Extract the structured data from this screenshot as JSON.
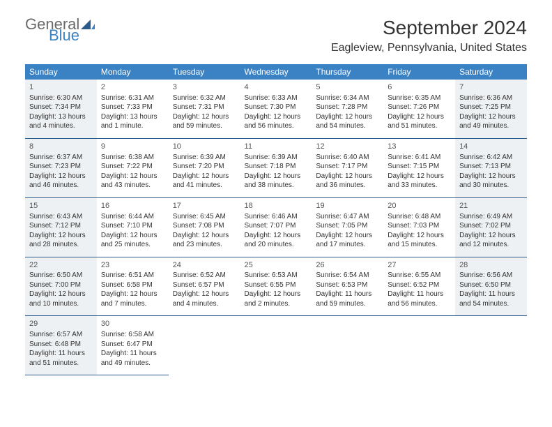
{
  "logo": {
    "line1": "General",
    "line2": "Blue",
    "icon_color": "#2c5a8a"
  },
  "header": {
    "month_title": "September 2024",
    "location": "Eagleview, Pennsylvania, United States"
  },
  "colors": {
    "header_bg": "#3b82c4",
    "header_text": "#ffffff",
    "row_border": "#2c5a8a",
    "shaded_bg": "#eef1f3",
    "text": "#333333"
  },
  "weekdays": [
    "Sunday",
    "Monday",
    "Tuesday",
    "Wednesday",
    "Thursday",
    "Friday",
    "Saturday"
  ],
  "weeks": [
    [
      {
        "n": "1",
        "sr": "Sunrise: 6:30 AM",
        "ss": "Sunset: 7:34 PM",
        "dl1": "Daylight: 13 hours",
        "dl2": "and 4 minutes.",
        "shaded": true
      },
      {
        "n": "2",
        "sr": "Sunrise: 6:31 AM",
        "ss": "Sunset: 7:33 PM",
        "dl1": "Daylight: 13 hours",
        "dl2": "and 1 minute."
      },
      {
        "n": "3",
        "sr": "Sunrise: 6:32 AM",
        "ss": "Sunset: 7:31 PM",
        "dl1": "Daylight: 12 hours",
        "dl2": "and 59 minutes."
      },
      {
        "n": "4",
        "sr": "Sunrise: 6:33 AM",
        "ss": "Sunset: 7:30 PM",
        "dl1": "Daylight: 12 hours",
        "dl2": "and 56 minutes."
      },
      {
        "n": "5",
        "sr": "Sunrise: 6:34 AM",
        "ss": "Sunset: 7:28 PM",
        "dl1": "Daylight: 12 hours",
        "dl2": "and 54 minutes."
      },
      {
        "n": "6",
        "sr": "Sunrise: 6:35 AM",
        "ss": "Sunset: 7:26 PM",
        "dl1": "Daylight: 12 hours",
        "dl2": "and 51 minutes."
      },
      {
        "n": "7",
        "sr": "Sunrise: 6:36 AM",
        "ss": "Sunset: 7:25 PM",
        "dl1": "Daylight: 12 hours",
        "dl2": "and 49 minutes.",
        "shaded": true
      }
    ],
    [
      {
        "n": "8",
        "sr": "Sunrise: 6:37 AM",
        "ss": "Sunset: 7:23 PM",
        "dl1": "Daylight: 12 hours",
        "dl2": "and 46 minutes.",
        "shaded": true
      },
      {
        "n": "9",
        "sr": "Sunrise: 6:38 AM",
        "ss": "Sunset: 7:22 PM",
        "dl1": "Daylight: 12 hours",
        "dl2": "and 43 minutes."
      },
      {
        "n": "10",
        "sr": "Sunrise: 6:39 AM",
        "ss": "Sunset: 7:20 PM",
        "dl1": "Daylight: 12 hours",
        "dl2": "and 41 minutes."
      },
      {
        "n": "11",
        "sr": "Sunrise: 6:39 AM",
        "ss": "Sunset: 7:18 PM",
        "dl1": "Daylight: 12 hours",
        "dl2": "and 38 minutes."
      },
      {
        "n": "12",
        "sr": "Sunrise: 6:40 AM",
        "ss": "Sunset: 7:17 PM",
        "dl1": "Daylight: 12 hours",
        "dl2": "and 36 minutes."
      },
      {
        "n": "13",
        "sr": "Sunrise: 6:41 AM",
        "ss": "Sunset: 7:15 PM",
        "dl1": "Daylight: 12 hours",
        "dl2": "and 33 minutes."
      },
      {
        "n": "14",
        "sr": "Sunrise: 6:42 AM",
        "ss": "Sunset: 7:13 PM",
        "dl1": "Daylight: 12 hours",
        "dl2": "and 30 minutes.",
        "shaded": true
      }
    ],
    [
      {
        "n": "15",
        "sr": "Sunrise: 6:43 AM",
        "ss": "Sunset: 7:12 PM",
        "dl1": "Daylight: 12 hours",
        "dl2": "and 28 minutes.",
        "shaded": true
      },
      {
        "n": "16",
        "sr": "Sunrise: 6:44 AM",
        "ss": "Sunset: 7:10 PM",
        "dl1": "Daylight: 12 hours",
        "dl2": "and 25 minutes."
      },
      {
        "n": "17",
        "sr": "Sunrise: 6:45 AM",
        "ss": "Sunset: 7:08 PM",
        "dl1": "Daylight: 12 hours",
        "dl2": "and 23 minutes."
      },
      {
        "n": "18",
        "sr": "Sunrise: 6:46 AM",
        "ss": "Sunset: 7:07 PM",
        "dl1": "Daylight: 12 hours",
        "dl2": "and 20 minutes."
      },
      {
        "n": "19",
        "sr": "Sunrise: 6:47 AM",
        "ss": "Sunset: 7:05 PM",
        "dl1": "Daylight: 12 hours",
        "dl2": "and 17 minutes."
      },
      {
        "n": "20",
        "sr": "Sunrise: 6:48 AM",
        "ss": "Sunset: 7:03 PM",
        "dl1": "Daylight: 12 hours",
        "dl2": "and 15 minutes."
      },
      {
        "n": "21",
        "sr": "Sunrise: 6:49 AM",
        "ss": "Sunset: 7:02 PM",
        "dl1": "Daylight: 12 hours",
        "dl2": "and 12 minutes.",
        "shaded": true
      }
    ],
    [
      {
        "n": "22",
        "sr": "Sunrise: 6:50 AM",
        "ss": "Sunset: 7:00 PM",
        "dl1": "Daylight: 12 hours",
        "dl2": "and 10 minutes.",
        "shaded": true
      },
      {
        "n": "23",
        "sr": "Sunrise: 6:51 AM",
        "ss": "Sunset: 6:58 PM",
        "dl1": "Daylight: 12 hours",
        "dl2": "and 7 minutes."
      },
      {
        "n": "24",
        "sr": "Sunrise: 6:52 AM",
        "ss": "Sunset: 6:57 PM",
        "dl1": "Daylight: 12 hours",
        "dl2": "and 4 minutes."
      },
      {
        "n": "25",
        "sr": "Sunrise: 6:53 AM",
        "ss": "Sunset: 6:55 PM",
        "dl1": "Daylight: 12 hours",
        "dl2": "and 2 minutes."
      },
      {
        "n": "26",
        "sr": "Sunrise: 6:54 AM",
        "ss": "Sunset: 6:53 PM",
        "dl1": "Daylight: 11 hours",
        "dl2": "and 59 minutes."
      },
      {
        "n": "27",
        "sr": "Sunrise: 6:55 AM",
        "ss": "Sunset: 6:52 PM",
        "dl1": "Daylight: 11 hours",
        "dl2": "and 56 minutes."
      },
      {
        "n": "28",
        "sr": "Sunrise: 6:56 AM",
        "ss": "Sunset: 6:50 PM",
        "dl1": "Daylight: 11 hours",
        "dl2": "and 54 minutes.",
        "shaded": true
      }
    ],
    [
      {
        "n": "29",
        "sr": "Sunrise: 6:57 AM",
        "ss": "Sunset: 6:48 PM",
        "dl1": "Daylight: 11 hours",
        "dl2": "and 51 minutes.",
        "shaded": true
      },
      {
        "n": "30",
        "sr": "Sunrise: 6:58 AM",
        "ss": "Sunset: 6:47 PM",
        "dl1": "Daylight: 11 hours",
        "dl2": "and 49 minutes."
      },
      null,
      null,
      null,
      null,
      null
    ]
  ]
}
